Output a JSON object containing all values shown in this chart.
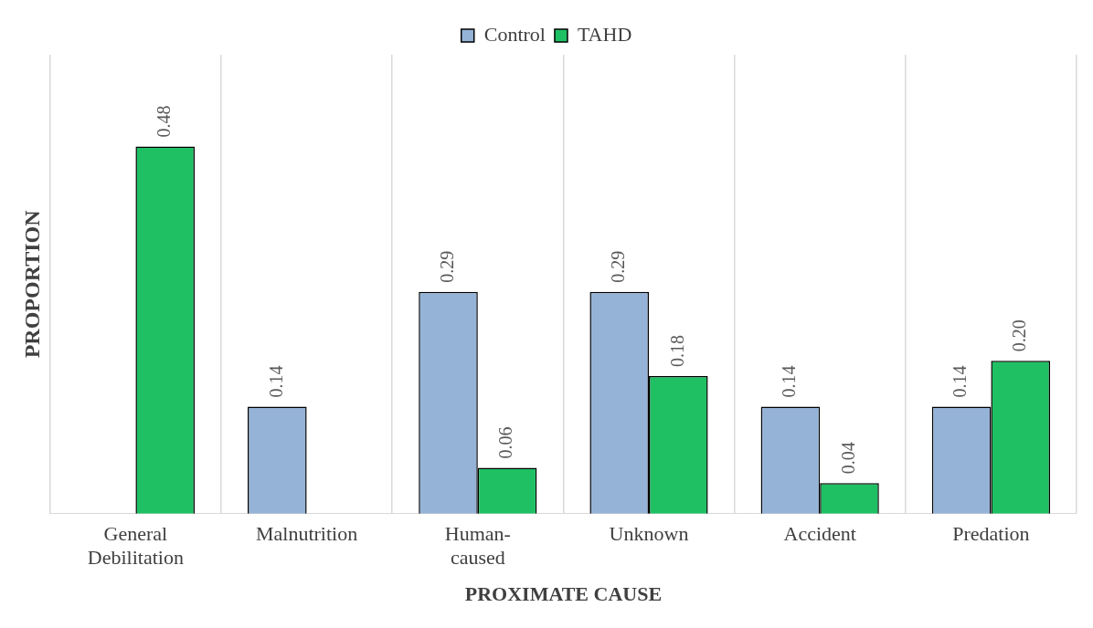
{
  "chart_data": {
    "type": "bar",
    "xlabel": "PROXIMATE CAUSE",
    "ylabel": "PROPORTION",
    "categories": [
      "General Debilitation",
      "Malnutrition",
      "Human-caused",
      "Unknown",
      "Accident",
      "Predation"
    ],
    "series": [
      {
        "name": "Control",
        "color": "#95b3d7",
        "values": [
          null,
          0.14,
          0.29,
          0.29,
          0.14,
          0.14
        ],
        "value_labels": [
          null,
          "0.14",
          "0.29",
          "0.29",
          "0.14",
          "0.14"
        ]
      },
      {
        "name": "TAHD",
        "color": "#1fc064",
        "values": [
          0.48,
          null,
          0.06,
          0.18,
          0.04,
          0.2
        ],
        "value_labels": [
          "0.48",
          null,
          "0.06",
          "0.18",
          "0.04",
          "0.20"
        ]
      }
    ],
    "ylim": [
      0,
      0.6
    ],
    "grid": "x",
    "legend": "top",
    "tick_labels": "x"
  }
}
